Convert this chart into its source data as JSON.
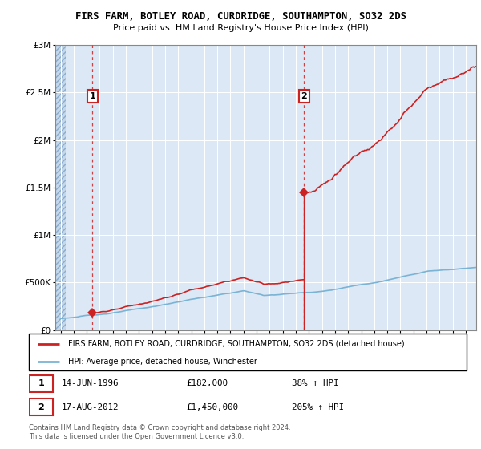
{
  "title": "FIRS FARM, BOTLEY ROAD, CURDRIDGE, SOUTHAMPTON, SO32 2DS",
  "subtitle": "Price paid vs. HM Land Registry's House Price Index (HPI)",
  "ylim": [
    0,
    3000000
  ],
  "xlim_start": 1993.6,
  "xlim_end": 2025.8,
  "hatch_end": 1994.42,
  "yticks": [
    0,
    500000,
    1000000,
    1500000,
    2000000,
    2500000,
    3000000
  ],
  "ytick_labels": [
    "£0",
    "£500K",
    "£1M",
    "£1.5M",
    "£2M",
    "£2.5M",
    "£3M"
  ],
  "xticks": [
    1994,
    1995,
    1996,
    1997,
    1998,
    1999,
    2000,
    2001,
    2002,
    2003,
    2004,
    2005,
    2006,
    2007,
    2008,
    2009,
    2010,
    2011,
    2012,
    2013,
    2014,
    2015,
    2016,
    2017,
    2018,
    2019,
    2020,
    2021,
    2022,
    2023,
    2024,
    2025
  ],
  "hpi_color": "#7ab3d4",
  "property_color": "#cc2222",
  "sale1_x": 1996.45,
  "sale1_y": 182000,
  "sale2_x": 2012.63,
  "sale2_y": 1450000,
  "legend_line1": "FIRS FARM, BOTLEY ROAD, CURDRIDGE, SOUTHAMPTON, SO32 2DS (detached house)",
  "legend_line2": "HPI: Average price, detached house, Winchester",
  "ann1_num": "1",
  "ann1_date": "14-JUN-1996",
  "ann1_price": "£182,000",
  "ann1_hpi": "38% ↑ HPI",
  "ann2_num": "2",
  "ann2_date": "17-AUG-2012",
  "ann2_price": "£1,450,000",
  "ann2_hpi": "205% ↑ HPI",
  "footer": "Contains HM Land Registry data © Crown copyright and database right 2024.\nThis data is licensed under the Open Government Licence v3.0.",
  "bg_color": "#dce8f5",
  "hatch_color": "#c5d8ea"
}
